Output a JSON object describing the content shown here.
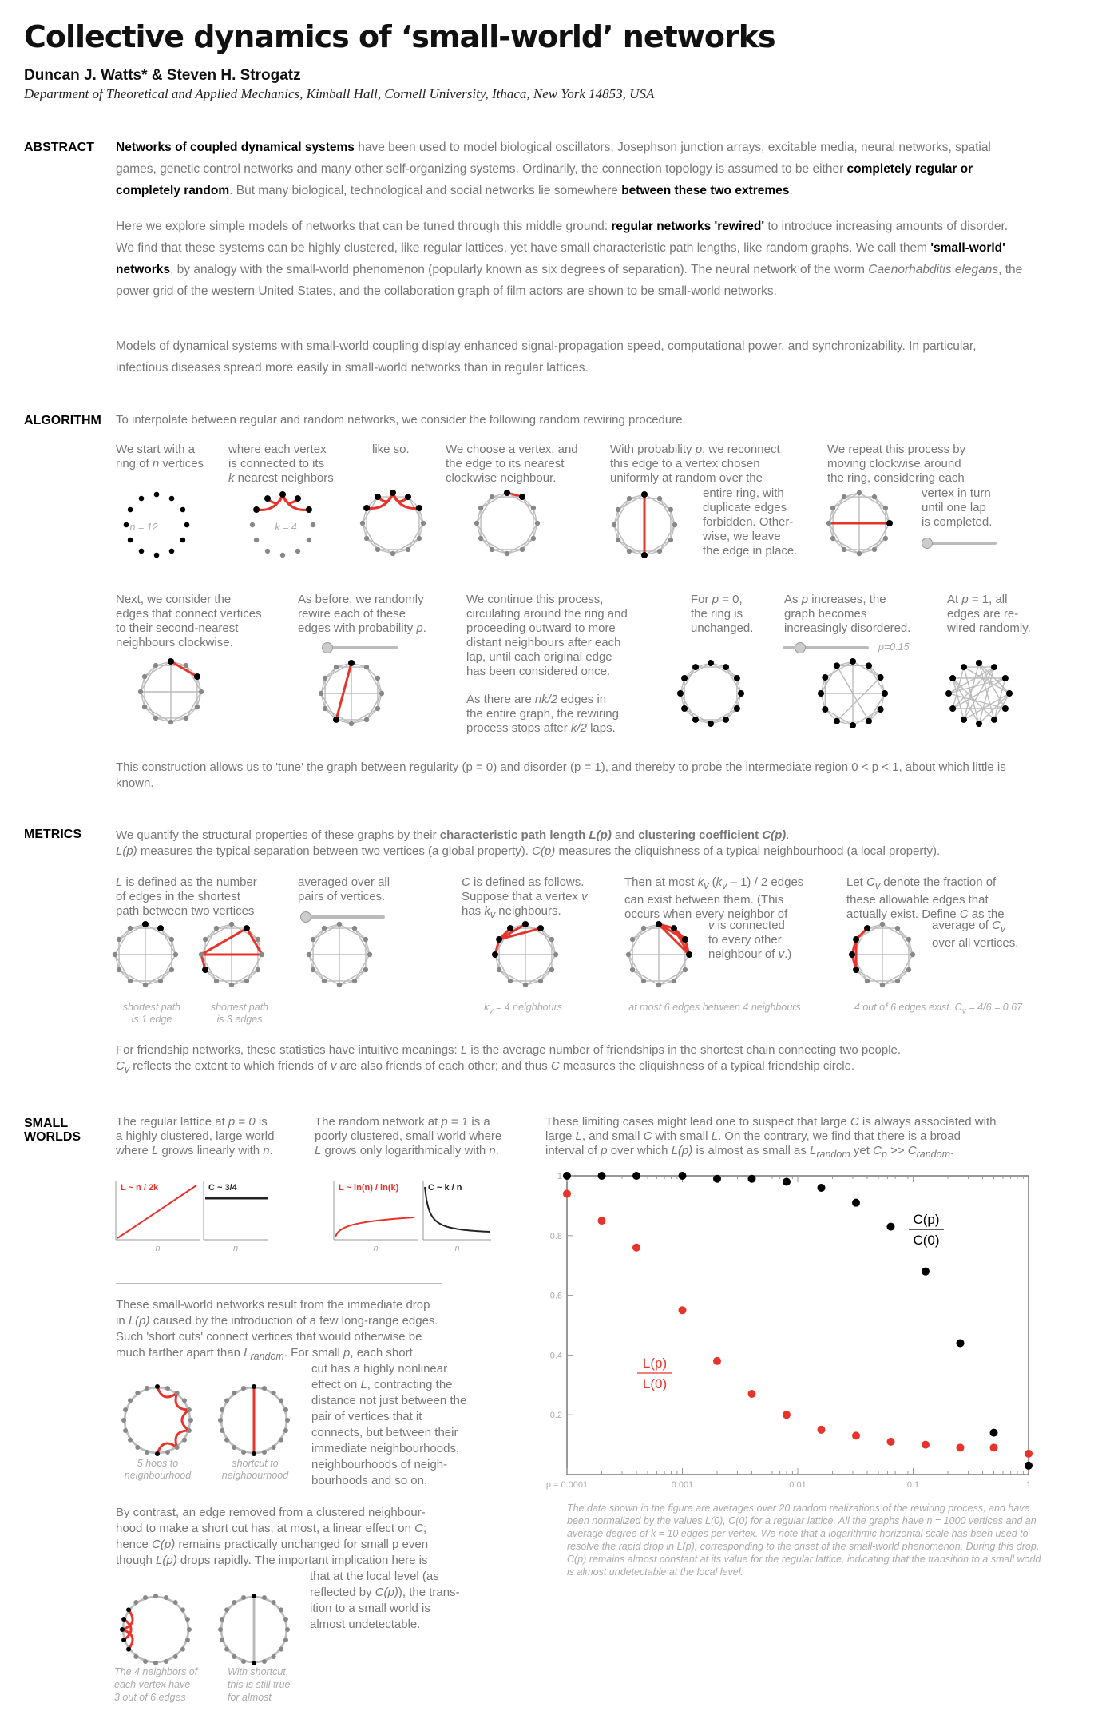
{
  "title": "Collective dynamics of ‘small-world’ networks",
  "authors": "Duncan J. Watts* & Steven H. Strogatz",
  "affiliation": "Department of Theoretical and Applied Mechanics, Kimball Hall, Cornell University, Ithaca, New York 14853, USA",
  "sections": {
    "abstract": "ABSTRACT",
    "algorithm": "ALGORITHM",
    "metrics": "METRICS",
    "small_worlds_1": "SMALL",
    "small_worlds_2": "WORLDS"
  },
  "abstract": {
    "p1": [
      {
        "t": "Networks of coupled dynamical systems",
        "b": true
      },
      {
        "t": " have been used to model biological oscillators, Josephson junction arrays, excitable media, neural networks, spatial games, genetic control networks and many other self-organizing systems. Ordinarily, the connection topology is assumed to be either ",
        "b": false
      },
      {
        "t": "completely regular or completely random",
        "b": true
      },
      {
        "t": ". But many biological, technological and social networks lie somewhere ",
        "b": false
      },
      {
        "t": "between these two extremes",
        "b": true
      },
      {
        "t": ".",
        "b": false
      }
    ],
    "p2": [
      {
        "t": "Here we explore simple models of networks that can be tuned through this middle ground: ",
        "b": false
      },
      {
        "t": "regular networks 'rewired'",
        "b": true
      },
      {
        "t": " to introduce increasing amounts of disorder. We find that these systems can be highly clustered, like regular lattices, yet have small characteristic path lengths, like random graphs. We call them ",
        "b": false
      },
      {
        "t": "'small-world' networks",
        "b": true
      },
      {
        "t": ", by analogy with the small-world phenomenon (popularly known as six degrees of separation). The neural network of the worm ",
        "b": false
      },
      {
        "t": "Caenorhabditis elegans",
        "b": false,
        "i": true
      },
      {
        "t": ", the power grid of the western United States, and the collaboration graph of film actors are shown to be small-world networks.",
        "b": false
      }
    ],
    "p3": [
      {
        "t": "Models of dynamical systems with small-world coupling display enhanced signal-propagation speed, computational power, and synchronizability. In particular, infectious diseases spread more easily in small-world networks than in regular lattices.",
        "b": false
      }
    ]
  },
  "algorithm": {
    "intro": "To interpolate between regular and random networks, we consider the following random rewiring procedure.",
    "steps_row1": [
      {
        "html": "We start with a<br>ring of <i>n</i> vertices"
      },
      {
        "html": "where each vertex<br>is connected to its<br><i>k</i> nearest neighbors"
      },
      {
        "html": "like so."
      },
      {
        "html": "We choose a vertex, and<br>the edge to its nearest<br>clockwise neighbour."
      },
      {
        "html": "With probability <i>p</i>, we reconnect<br>this edge to a vertex chosen<br>uniformly at random over the"
      },
      {
        "html": "We repeat this process by<br>moving clockwise around<br>the ring, considering each"
      }
    ],
    "step5_cont": "entire ring, with<br>duplicate edges<br>forbidden. Other-<br>wise, we leave<br>the edge in place.",
    "step6_cont": "vertex in turn<br>until one lap<br>is completed.",
    "label_n": "n = 12",
    "label_k": "k = 4",
    "steps_row2": [
      {
        "html": "Next, we consider the<br>edges that connect vertices<br>to their second-nearest<br>neighbours clockwise."
      },
      {
        "html": "As before, we randomly<br>rewire each of these<br>edges with probability <i>p</i>."
      },
      {
        "html": "We continue this process,<br>circulating around the ring and<br>proceeding outward to more<br>distant neighbours after each<br>lap, until each original edge<br>has been considered once."
      },
      {
        "html": "For <i>p</i> = 0,<br>the ring is<br>unchanged."
      },
      {
        "html": "As <i>p</i> increases, the<br>graph becomes<br>increasingly disordered."
      },
      {
        "html": "At <i>p</i> = 1, all<br>edges are re-<br>wired randomly."
      }
    ],
    "step9_cont": "As there are <i>nk/2</i> edges in<br>the entire graph, the rewiring<br>process stops after <i>k/2</i> laps.",
    "p_label": "p=0.15",
    "conclusion": "This construction allows us to 'tune' the graph between regularity (p = 0) and disorder (p = 1), and thereby to probe the intermediate region 0 < p < 1, about which little is known."
  },
  "metrics": {
    "intro_html": "We quantify the structural properties of these graphs by their <b>characteristic path length <i>L(p)</i></b> and <b>clustering coefficient <i>C(p)</i></b>.<br><i>L(p)</i> measures the typical separation between two vertices (a global property). <i>C(p)</i> measures the cliquishness of a typical neighbourhood (a local property).",
    "items": [
      {
        "html": "<i>L</i> is defined as the number<br>of edges in the shortest<br>path between two vertices"
      },
      {
        "html": "averaged over all<br>pairs of vertices."
      },
      {
        "html": "<i>C</i> is defined as follows.<br>Suppose that a vertex <i>v</i><br>has <i>k<sub>v</sub></i> neighbours."
      },
      {
        "html": "Then at most <i>k<sub>v</sub></i> (<i>k<sub>v</sub></i> – 1) / 2 edges<br>can exist between them. (This<br>occurs when every neighbor of"
      },
      {
        "html": "Let <i>C<sub>v</sub></i> denote the fraction of<br>these allowable edges that<br>actually exist. Define <i>C</i> as the"
      }
    ],
    "item4_cont": "<i>v</i> is connected<br>to every other<br>neighbour of <i>v</i>.)",
    "item5_cont": "average of <i>C<sub>v</sub></i><br>over all vertices.",
    "captions": {
      "sp1": "shortest path<br>is 1 edge",
      "sp3": "shortest path<br>is 3 edges",
      "kv": "k<sub>v</sub> = 4 neighbours",
      "at_most": "at most 6 edges between 4 neighbours",
      "out_of": "4 out of 6 edges exist. C<sub>v</sub> = 4/6 = 0.67"
    },
    "friendship_html": "For friendship networks, these statistics have intuitive meanings: <i>L</i> is the average number of friendships in the shortest chain connecting two people.<br><i>C<sub>v</sub></i> reflects the extent to which friends of <i>v</i> are also friends of each other; and thus <i>C</i> measures the cliquishness of a typical friendship circle."
  },
  "small_worlds": {
    "regular": "The regular lattice at <i>p</i> = <i>0</i> is<br>a highly clustered, large world<br>where <i>L</i> grows linearly with <i>n</i>.",
    "random": "The random network at <i>p</i> = <i>1</i> is a<br>poorly clustered, small world where<br><i>L</i> grows only logarithmically with <i>n</i>.",
    "limiting": "These limiting cases might lead one to suspect that large <i>C</i> is always associated with<br>large <i>L</i>, and small <i>C</i> with small <i>L</i>. On the contrary, we find that there is a broad<br>interval of <i>p</i> over which <i>L(p)</i> is almost as small as <i>L<sub>random</sub></i> yet <i>C<sub>p</sub></i> &gt;&gt; <i>C<sub>random</sub></i>.",
    "mini_labels": [
      "L ~ n / 2k",
      "C ~ 3/4",
      "L ~ ln(n) / ln(k)",
      "C ~ k / n"
    ],
    "mini_x": "n",
    "shortcut_text": "These small-world networks result from the immediate drop<br>in <i>L(p)</i> caused by the introduction of a few long-range edges.<br>Such 'short cuts' connect vertices that would otherwise be<br>much farther apart than <i>L<sub>random</sub></i>. For small <i>p</i>, each short",
    "shortcut_cont": "cut has a highly nonlinear<br>effect on <i>L</i>, contracting the<br>distance not just between the<br>pair of vertices that it<br>connects, but between their<br>immediate neighbourhoods,<br>neighbourhoods of neigh-<br>bourhoods and so on.",
    "cap_5hops": "5 hops to<br>neighbourhood",
    "cap_shortcut": "shortcut to<br>neighbourhood",
    "contrast_text": "By contrast, an edge removed from a clustered neighbour-<br>hood to make a short cut has, at most, a linear effect on <i>C</i>;<br>hence <i>C(p)</i> remains practically unchanged for small p even<br>though <i>L(p)</i> drops rapidly. The important implication here is",
    "contrast_cont": "that at the local level (as<br>reflected by <i>C(p)</i>), the trans-<br>ition to a small world is<br>almost undetectable.",
    "cap_4neighbors": "The 4 neighbors of<br>each vertex have<br>3 out of 6 edges",
    "cap_withshortcut": "With shortcut,<br>this is still true<br>for almost",
    "plot_note": "The data shown in the figure are averages over 20 random realizations of the rewiring process, and have been normalized by the values L(0), C(0) for a regular lattice. All the graphs have n = 1000 vertices and an average degree of k = 10 edges per vertex. We note that a logarithmic horizontal scale has been used to resolve the rapid drop in L(p), corresponding to the onset of the small-world phenomenon. During this drop, C(p) remains almost constant at its value for the regular lattice, indicating that the transition to a small world is almost undetectable at the local level."
  },
  "chart_data": {
    "type": "scatter",
    "xscale": "log",
    "xlim": [
      0.0001,
      1
    ],
    "ylim": [
      0,
      1
    ],
    "x_ticks": [
      {
        "v": 0.0001,
        "label": "p = 0.0001"
      },
      {
        "v": 0.001,
        "label": "0.001"
      },
      {
        "v": 0.01,
        "label": "0.01"
      },
      {
        "v": 0.1,
        "label": "0.1"
      },
      {
        "v": 1,
        "label": "1"
      }
    ],
    "y_ticks": [
      {
        "v": 1,
        "label": "1"
      },
      {
        "v": 0.8,
        "label": "0.8"
      },
      {
        "v": 0.6,
        "label": "0.6"
      },
      {
        "v": 0.4,
        "label": "0.4"
      },
      {
        "v": 0.2,
        "label": "0.2"
      }
    ],
    "x": [
      0.0001,
      0.0002,
      0.0004,
      0.001,
      0.002,
      0.004,
      0.008,
      0.016,
      0.032,
      0.064,
      0.128,
      0.256,
      0.5,
      1.0
    ],
    "series": [
      {
        "name": "C(p)/C(0)",
        "label_top": "C(p)",
        "label_bottom": "C(0)",
        "color": "#000000",
        "values": [
          1.0,
          1.0,
          1.0,
          1.0,
          0.99,
          0.99,
          0.98,
          0.96,
          0.91,
          0.83,
          0.68,
          0.44,
          0.14,
          0.03
        ]
      },
      {
        "name": "L(p)/L(0)",
        "label_top": "L(p)",
        "label_bottom": "L(0)",
        "color": "#e8332a",
        "values": [
          0.94,
          0.85,
          0.76,
          0.55,
          0.38,
          0.27,
          0.2,
          0.15,
          0.13,
          0.11,
          0.1,
          0.09,
          0.09,
          0.07
        ]
      }
    ]
  }
}
